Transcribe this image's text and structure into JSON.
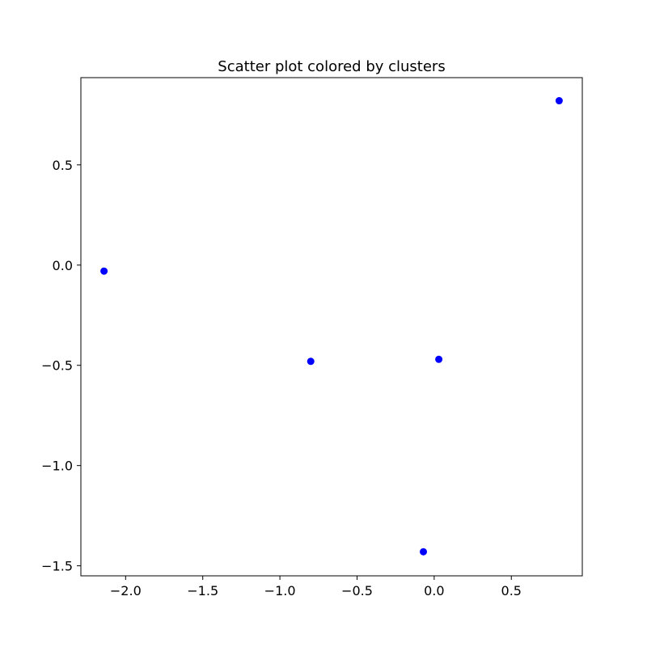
{
  "chart_data": {
    "type": "scatter",
    "title": "Scatter plot colored by clusters",
    "xlabel": "",
    "ylabel": "",
    "xlim": [
      -2.29,
      0.96
    ],
    "ylim": [
      -1.55,
      0.935
    ],
    "xticks": [
      -2.0,
      -1.5,
      -1.0,
      -0.5,
      0.0,
      0.5
    ],
    "xtick_labels": [
      "−2.0",
      "−1.5",
      "−1.0",
      "−0.5",
      "0.0",
      "0.5"
    ],
    "yticks": [
      0.5,
      0.0,
      -0.5,
      -1.0,
      -1.5
    ],
    "ytick_labels": [
      "0.5",
      "0.0",
      "−0.5",
      "−1.0",
      "−1.5"
    ],
    "grid": false,
    "series": [
      {
        "color": "#0000ff",
        "points": [
          {
            "x": -2.14,
            "y": -0.03
          },
          {
            "x": -0.8,
            "y": -0.48
          },
          {
            "x": 0.03,
            "y": -0.47
          },
          {
            "x": -0.07,
            "y": -1.43
          },
          {
            "x": 0.81,
            "y": 0.82
          }
        ]
      }
    ]
  }
}
